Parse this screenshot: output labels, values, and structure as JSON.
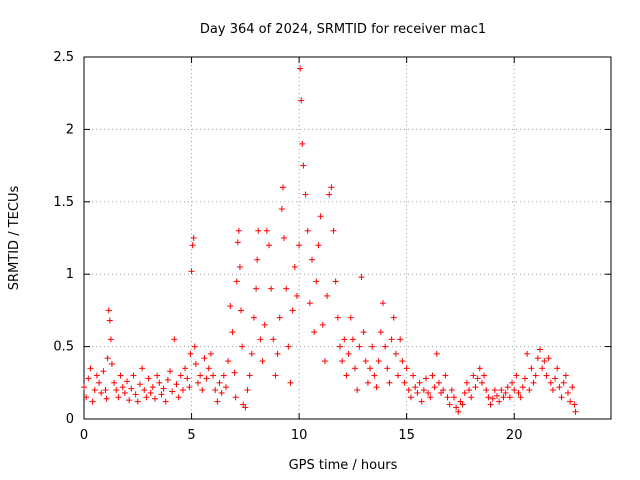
{
  "chart_data": {
    "type": "scatter",
    "title": "Day 364 of 2024, SRMTID for receiver mac1",
    "xlabel": "GPS time / hours",
    "ylabel": "SRMTID / TECUs",
    "xlim": [
      0,
      24.5
    ],
    "ylim": [
      0,
      2.5
    ],
    "xticks": [
      0,
      5,
      10,
      15,
      20
    ],
    "xtick_labels": [
      "0",
      "5",
      "10",
      "15",
      "20"
    ],
    "yticks": [
      0,
      0.5,
      1,
      1.5,
      2,
      2.5
    ],
    "ytick_labels": [
      "0",
      "0.5",
      "1",
      "1.5",
      "2",
      "2.5"
    ],
    "grid": true,
    "marker": "+",
    "series": [
      {
        "name": "mac1",
        "color": "#ff0000",
        "points": [
          [
            0.0,
            0.22
          ],
          [
            0.1,
            0.15
          ],
          [
            0.2,
            0.28
          ],
          [
            0.3,
            0.35
          ],
          [
            0.4,
            0.12
          ],
          [
            0.5,
            0.2
          ],
          [
            0.6,
            0.3
          ],
          [
            0.7,
            0.25
          ],
          [
            0.8,
            0.18
          ],
          [
            0.9,
            0.33
          ],
          [
            1.0,
            0.2
          ],
          [
            1.05,
            0.14
          ],
          [
            1.1,
            0.42
          ],
          [
            1.15,
            0.75
          ],
          [
            1.2,
            0.68
          ],
          [
            1.25,
            0.55
          ],
          [
            1.3,
            0.38
          ],
          [
            1.4,
            0.25
          ],
          [
            1.5,
            0.2
          ],
          [
            1.6,
            0.15
          ],
          [
            1.7,
            0.3
          ],
          [
            1.8,
            0.22
          ],
          [
            1.9,
            0.18
          ],
          [
            2.0,
            0.26
          ],
          [
            2.1,
            0.13
          ],
          [
            2.2,
            0.21
          ],
          [
            2.3,
            0.3
          ],
          [
            2.4,
            0.17
          ],
          [
            2.5,
            0.12
          ],
          [
            2.6,
            0.24
          ],
          [
            2.7,
            0.35
          ],
          [
            2.8,
            0.2
          ],
          [
            2.9,
            0.15
          ],
          [
            3.0,
            0.28
          ],
          [
            3.1,
            0.18
          ],
          [
            3.2,
            0.22
          ],
          [
            3.3,
            0.14
          ],
          [
            3.4,
            0.3
          ],
          [
            3.5,
            0.25
          ],
          [
            3.6,
            0.17
          ],
          [
            3.7,
            0.21
          ],
          [
            3.8,
            0.12
          ],
          [
            3.9,
            0.27
          ],
          [
            4.0,
            0.33
          ],
          [
            4.1,
            0.19
          ],
          [
            4.2,
            0.55
          ],
          [
            4.3,
            0.24
          ],
          [
            4.4,
            0.15
          ],
          [
            4.5,
            0.3
          ],
          [
            4.6,
            0.2
          ],
          [
            4.7,
            0.35
          ],
          [
            4.8,
            0.28
          ],
          [
            4.9,
            0.22
          ],
          [
            4.95,
            0.45
          ],
          [
            5.0,
            1.02
          ],
          [
            5.05,
            1.2
          ],
          [
            5.1,
            1.25
          ],
          [
            5.15,
            0.5
          ],
          [
            5.2,
            0.38
          ],
          [
            5.3,
            0.25
          ],
          [
            5.4,
            0.3
          ],
          [
            5.5,
            0.2
          ],
          [
            5.6,
            0.42
          ],
          [
            5.7,
            0.28
          ],
          [
            5.8,
            0.35
          ],
          [
            5.9,
            0.45
          ],
          [
            6.0,
            0.3
          ],
          [
            6.1,
            0.2
          ],
          [
            6.2,
            0.12
          ],
          [
            6.3,
            0.25
          ],
          [
            6.4,
            0.18
          ],
          [
            6.5,
            0.3
          ],
          [
            6.6,
            0.22
          ],
          [
            6.7,
            0.4
          ],
          [
            6.8,
            0.78
          ],
          [
            6.9,
            0.6
          ],
          [
            7.0,
            0.32
          ],
          [
            7.05,
            0.15
          ],
          [
            7.1,
            0.95
          ],
          [
            7.15,
            1.22
          ],
          [
            7.2,
            1.3
          ],
          [
            7.25,
            1.05
          ],
          [
            7.3,
            0.75
          ],
          [
            7.35,
            0.5
          ],
          [
            7.4,
            0.1
          ],
          [
            7.5,
            0.08
          ],
          [
            7.6,
            0.2
          ],
          [
            7.7,
            0.3
          ],
          [
            7.8,
            0.45
          ],
          [
            7.9,
            0.7
          ],
          [
            8.0,
            0.9
          ],
          [
            8.05,
            1.1
          ],
          [
            8.1,
            1.3
          ],
          [
            8.2,
            0.55
          ],
          [
            8.3,
            0.4
          ],
          [
            8.4,
            0.65
          ],
          [
            8.5,
            1.3
          ],
          [
            8.6,
            1.2
          ],
          [
            8.7,
            0.9
          ],
          [
            8.8,
            0.55
          ],
          [
            8.9,
            0.3
          ],
          [
            9.0,
            0.45
          ],
          [
            9.1,
            0.7
          ],
          [
            9.2,
            1.45
          ],
          [
            9.25,
            1.6
          ],
          [
            9.3,
            1.25
          ],
          [
            9.4,
            0.9
          ],
          [
            9.5,
            0.5
          ],
          [
            9.6,
            0.25
          ],
          [
            9.7,
            0.75
          ],
          [
            9.8,
            1.05
          ],
          [
            9.9,
            0.85
          ],
          [
            10.0,
            1.2
          ],
          [
            10.05,
            2.42
          ],
          [
            10.1,
            2.2
          ],
          [
            10.15,
            1.9
          ],
          [
            10.2,
            1.75
          ],
          [
            10.3,
            1.55
          ],
          [
            10.4,
            1.3
          ],
          [
            10.5,
            0.8
          ],
          [
            10.6,
            1.1
          ],
          [
            10.7,
            0.6
          ],
          [
            10.8,
            0.95
          ],
          [
            10.9,
            1.2
          ],
          [
            11.0,
            1.4
          ],
          [
            11.1,
            0.65
          ],
          [
            11.2,
            0.4
          ],
          [
            11.3,
            0.85
          ],
          [
            11.4,
            1.55
          ],
          [
            11.5,
            1.6
          ],
          [
            11.6,
            1.3
          ],
          [
            11.7,
            0.95
          ],
          [
            11.8,
            0.7
          ],
          [
            11.9,
            0.5
          ],
          [
            12.0,
            0.4
          ],
          [
            12.1,
            0.55
          ],
          [
            12.2,
            0.3
          ],
          [
            12.3,
            0.45
          ],
          [
            12.4,
            0.7
          ],
          [
            12.5,
            0.55
          ],
          [
            12.6,
            0.35
          ],
          [
            12.7,
            0.2
          ],
          [
            12.8,
            0.5
          ],
          [
            12.9,
            0.98
          ],
          [
            13.0,
            0.6
          ],
          [
            13.1,
            0.4
          ],
          [
            13.2,
            0.25
          ],
          [
            13.3,
            0.35
          ],
          [
            13.4,
            0.5
          ],
          [
            13.5,
            0.3
          ],
          [
            13.6,
            0.22
          ],
          [
            13.7,
            0.4
          ],
          [
            13.8,
            0.6
          ],
          [
            13.9,
            0.8
          ],
          [
            14.0,
            0.5
          ],
          [
            14.1,
            0.35
          ],
          [
            14.2,
            0.25
          ],
          [
            14.3,
            0.55
          ],
          [
            14.4,
            0.7
          ],
          [
            14.5,
            0.45
          ],
          [
            14.6,
            0.3
          ],
          [
            14.7,
            0.55
          ],
          [
            14.8,
            0.4
          ],
          [
            14.9,
            0.25
          ],
          [
            15.0,
            0.35
          ],
          [
            15.1,
            0.2
          ],
          [
            15.2,
            0.15
          ],
          [
            15.3,
            0.3
          ],
          [
            15.4,
            0.22
          ],
          [
            15.5,
            0.18
          ],
          [
            15.6,
            0.25
          ],
          [
            15.7,
            0.12
          ],
          [
            15.8,
            0.2
          ],
          [
            15.9,
            0.28
          ],
          [
            16.0,
            0.18
          ],
          [
            16.1,
            0.15
          ],
          [
            16.2,
            0.3
          ],
          [
            16.3,
            0.22
          ],
          [
            16.4,
            0.45
          ],
          [
            16.5,
            0.25
          ],
          [
            16.6,
            0.18
          ],
          [
            16.7,
            0.2
          ],
          [
            16.8,
            0.3
          ],
          [
            16.9,
            0.15
          ],
          [
            17.0,
            0.1
          ],
          [
            17.1,
            0.2
          ],
          [
            17.2,
            0.15
          ],
          [
            17.3,
            0.08
          ],
          [
            17.4,
            0.05
          ],
          [
            17.5,
            0.12
          ],
          [
            17.6,
            0.1
          ],
          [
            17.7,
            0.18
          ],
          [
            17.8,
            0.25
          ],
          [
            17.9,
            0.2
          ],
          [
            18.0,
            0.15
          ],
          [
            18.1,
            0.3
          ],
          [
            18.2,
            0.22
          ],
          [
            18.3,
            0.28
          ],
          [
            18.4,
            0.35
          ],
          [
            18.5,
            0.25
          ],
          [
            18.6,
            0.3
          ],
          [
            18.7,
            0.2
          ],
          [
            18.8,
            0.15
          ],
          [
            18.9,
            0.1
          ],
          [
            19.0,
            0.14
          ],
          [
            19.1,
            0.2
          ],
          [
            19.2,
            0.16
          ],
          [
            19.3,
            0.12
          ],
          [
            19.4,
            0.2
          ],
          [
            19.5,
            0.15
          ],
          [
            19.6,
            0.18
          ],
          [
            19.7,
            0.22
          ],
          [
            19.8,
            0.15
          ],
          [
            19.9,
            0.25
          ],
          [
            20.0,
            0.2
          ],
          [
            20.1,
            0.3
          ],
          [
            20.2,
            0.18
          ],
          [
            20.3,
            0.15
          ],
          [
            20.4,
            0.22
          ],
          [
            20.5,
            0.28
          ],
          [
            20.6,
            0.45
          ],
          [
            20.7,
            0.2
          ],
          [
            20.8,
            0.35
          ],
          [
            20.9,
            0.25
          ],
          [
            21.0,
            0.3
          ],
          [
            21.1,
            0.42
          ],
          [
            21.2,
            0.48
          ],
          [
            21.3,
            0.35
          ],
          [
            21.4,
            0.4
          ],
          [
            21.5,
            0.3
          ],
          [
            21.6,
            0.42
          ],
          [
            21.7,
            0.25
          ],
          [
            21.8,
            0.2
          ],
          [
            21.9,
            0.28
          ],
          [
            22.0,
            0.35
          ],
          [
            22.1,
            0.22
          ],
          [
            22.2,
            0.15
          ],
          [
            22.3,
            0.25
          ],
          [
            22.4,
            0.3
          ],
          [
            22.5,
            0.18
          ],
          [
            22.6,
            0.12
          ],
          [
            22.7,
            0.22
          ],
          [
            22.8,
            0.1
          ],
          [
            22.85,
            0.05
          ]
        ]
      }
    ]
  }
}
